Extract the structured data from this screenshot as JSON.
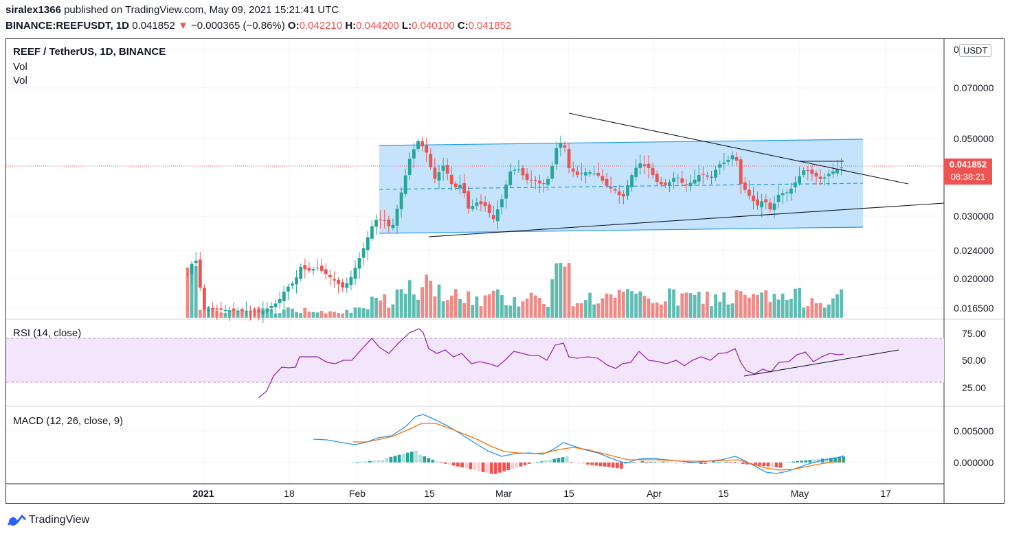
{
  "header": {
    "author": "siralex1366",
    "published_text": "published on TradingView.com, May 09, 2021 15:21:41 UTC",
    "symbol": "BINANCE:REEFUSDT, 1D",
    "last": "0.041852",
    "change": "−0.000365 (−0.86%)",
    "o_label": "O:",
    "o_value": "0.042210",
    "h_label": "H:",
    "h_value": "0.044200",
    "l_label": "L:",
    "l_value": "0.040100",
    "c_label": "C:",
    "c_value": "0.041852"
  },
  "legend": {
    "main": "REEF / TetherUS, 1D, BINANCE",
    "vol1": "Vol",
    "vol2": "Vol",
    "rsi": "RSI (14, close)",
    "macd": "MACD (12, 26, close, 9)"
  },
  "price_scale": {
    "currency_button": "USDT",
    "labels": [
      "0.070000",
      "0.050000",
      "0.030000",
      "0.024000",
      "0.020000",
      "0.016500"
    ],
    "top_partial": "0",
    "current_price": "0.041852",
    "countdown": "08:38:21"
  },
  "rsi_scale": {
    "labels": [
      "75.00",
      "50.00",
      "25.00"
    ]
  },
  "macd_scale": {
    "labels": [
      "0.005000",
      "0.000000"
    ]
  },
  "time_axis": {
    "labels": [
      "2021",
      "18",
      "Feb",
      "15",
      "Mar",
      "15",
      "Apr",
      "15",
      "May",
      "17"
    ]
  },
  "brand": {
    "name": "TradingView"
  },
  "colors": {
    "up": "#26a69a",
    "down": "#ef5350",
    "up_vol": "#5fbcb2",
    "down_vol": "#f08a86",
    "channel_fill": "#bbdefb",
    "channel_line": "#2196f3",
    "rsi": "#9c27b0",
    "rsi_band": "#f3e5fc",
    "macd_line": "#2196f3",
    "signal_line": "#ff6d00"
  },
  "chart_data": {
    "type": "candlestick",
    "symbol": "REEF / TetherUS, 1D, BINANCE",
    "y_scale": "log",
    "last_close": 0.041852,
    "last_bar": {
      "open": 0.04221,
      "high": 0.0442,
      "low": 0.0401,
      "close": 0.041852
    },
    "rsi": {
      "period": 14,
      "overbought": 70,
      "oversold": 30,
      "axis_ticks": [
        25,
        50,
        75
      ]
    },
    "macd": {
      "fast": 12,
      "slow": 26,
      "signal": 9,
      "axis_ticks": [
        0,
        0.005
      ]
    }
  }
}
